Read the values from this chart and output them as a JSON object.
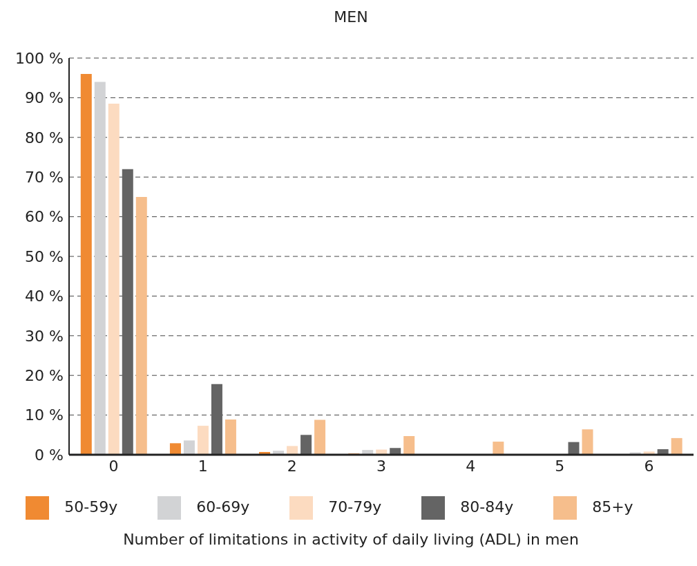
{
  "chart_data": {
    "type": "bar",
    "title": "MEN",
    "xlabel": "Number of limitations in activity of daily living (ADL) in men",
    "categories": [
      "0",
      "1",
      "2",
      "3",
      "4",
      "5",
      "6"
    ],
    "series": [
      {
        "name": "50-59y",
        "color": "#f08a32",
        "values": [
          96,
          2.9,
          0.7,
          0.3,
          0.1,
          null,
          null
        ]
      },
      {
        "name": "60-69y",
        "color": "#d2d3d5",
        "values": [
          94,
          3.6,
          1,
          1.2,
          null,
          0,
          0.6
        ]
      },
      {
        "name": "70-79y",
        "color": "#fcdbc0",
        "values": [
          88.5,
          7.3,
          2.2,
          1.3,
          null,
          null,
          0.8
        ]
      },
      {
        "name": "80-84y",
        "color": "#646464",
        "values": [
          72,
          17.8,
          5,
          1.7,
          0.1,
          3.2,
          1.4
        ]
      },
      {
        "name": "85+y",
        "color": "#f6be8c",
        "values": [
          65,
          8.9,
          8.8,
          4.7,
          3.3,
          6.4,
          4.2
        ]
      }
    ],
    "ylim": [
      0,
      100
    ],
    "yticks": [
      {
        "value": 0,
        "label": "0 %"
      },
      {
        "value": 10,
        "label": "10 %"
      },
      {
        "value": 20,
        "label": "20 %"
      },
      {
        "value": 30,
        "label": "30 %"
      },
      {
        "value": 40,
        "label": "40 %"
      },
      {
        "value": 50,
        "label": "50 %"
      },
      {
        "value": 60,
        "label": "60 %"
      },
      {
        "value": 70,
        "label": "70 %"
      },
      {
        "value": 80,
        "label": "80 %"
      },
      {
        "value": 90,
        "label": "90 %"
      },
      {
        "value": 100,
        "label": "100 %"
      }
    ],
    "grid": "y",
    "legend": "bottom"
  }
}
